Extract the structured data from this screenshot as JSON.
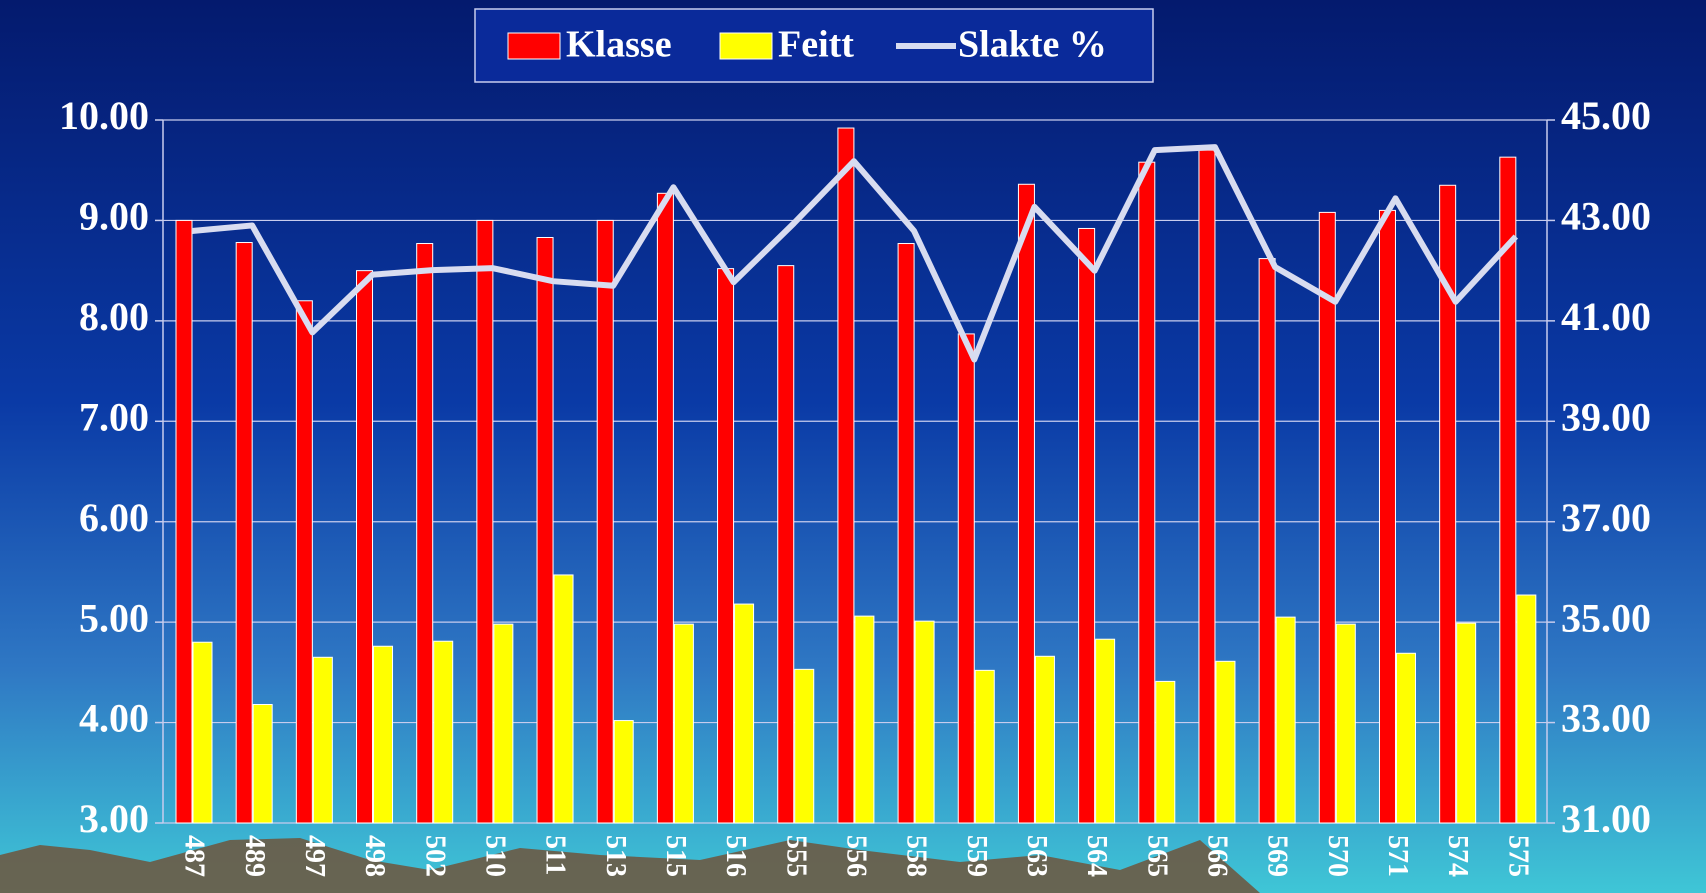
{
  "chart_data": {
    "type": "bar",
    "categories": [
      "487",
      "489",
      "497",
      "498",
      "502",
      "510",
      "511",
      "513",
      "515",
      "516",
      "555",
      "556",
      "558",
      "559",
      "563",
      "564",
      "565",
      "566",
      "569",
      "570",
      "571",
      "574",
      "575"
    ],
    "series": [
      {
        "name": "Klasse",
        "color": "#ff0000",
        "type": "bar",
        "values": [
          9.0,
          8.78,
          8.2,
          8.5,
          8.77,
          9.0,
          8.83,
          9.0,
          9.27,
          8.52,
          8.55,
          9.92,
          8.77,
          7.87,
          9.36,
          8.92,
          9.58,
          9.7,
          8.62,
          9.08,
          9.1,
          9.35,
          9.63
        ]
      },
      {
        "name": "Feitt",
        "color": "#ffff00",
        "type": "bar",
        "values": [
          4.8,
          4.18,
          4.65,
          4.76,
          4.81,
          4.98,
          5.47,
          4.02,
          4.98,
          5.18,
          4.53,
          5.06,
          5.01,
          4.52,
          4.66,
          4.83,
          4.41,
          4.61,
          5.05,
          4.98,
          4.69,
          4.99,
          5.27
        ]
      },
      {
        "name": "Slakte %",
        "color": "#d8dcf0",
        "type": "line",
        "axis": "y2",
        "values": [
          42.79,
          42.9,
          40.77,
          41.92,
          42.01,
          42.05,
          41.79,
          41.7,
          43.66,
          41.77,
          42.94,
          44.18,
          42.79,
          40.23,
          43.27,
          42.0,
          44.4,
          44.46,
          42.07,
          41.38,
          43.44,
          41.38,
          42.68
        ]
      }
    ],
    "ylim": [
      3,
      10
    ],
    "yticks": [
      {
        "value": 3,
        "label": "3.00"
      },
      {
        "value": 4,
        "label": "4.00"
      },
      {
        "value": 5,
        "label": "5.00"
      },
      {
        "value": 6,
        "label": "6.00"
      },
      {
        "value": 7,
        "label": "7.00"
      },
      {
        "value": 8,
        "label": "8.00"
      },
      {
        "value": 9,
        "label": "9.00"
      },
      {
        "value": 10,
        "label": "10.00"
      }
    ],
    "y2lim": [
      31,
      45
    ],
    "y2ticks": [
      {
        "value": 31,
        "label": "31.00"
      },
      {
        "value": 33,
        "label": "33.00"
      },
      {
        "value": 35,
        "label": "35.00"
      },
      {
        "value": 37,
        "label": "37.00"
      },
      {
        "value": 39,
        "label": "39.00"
      },
      {
        "value": 41,
        "label": "41.00"
      },
      {
        "value": 43,
        "label": "43.00"
      },
      {
        "value": 45,
        "label": "45.00"
      }
    ],
    "grid": true,
    "legend": "top"
  }
}
